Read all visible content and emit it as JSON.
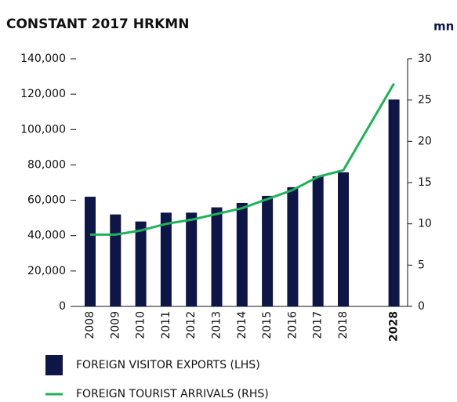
{
  "chart_data": {
    "type": "bar_line",
    "title": "CONSTANT 2017 HRKMN",
    "y2_unit": "mn",
    "categories": [
      "2008",
      "2009",
      "2010",
      "2011",
      "2012",
      "2013",
      "2014",
      "2015",
      "2016",
      "2017",
      "2018",
      "2028"
    ],
    "series": [
      {
        "name": "FOREIGN VISITOR EXPORTS (LHS)",
        "type": "bar",
        "color": "#0e1547",
        "values": [
          62000,
          52000,
          48000,
          53000,
          53000,
          56000,
          58500,
          62500,
          67400,
          73600,
          75800,
          117000
        ]
      },
      {
        "name": "FOREIGN TOURIST ARRIVALS (RHS)",
        "type": "line",
        "axis": "y2",
        "color": "#1fb25a",
        "values": [
          8.7,
          8.7,
          9.2,
          10.0,
          10.5,
          11.2,
          11.9,
          13.0,
          14.1,
          15.7,
          16.5,
          27.0
        ]
      }
    ],
    "ylim": [
      0,
      140000
    ],
    "yticks": [
      0,
      {
        "value": 20000,
        "label": "20,000"
      },
      {
        "value": 40000,
        "label": "40,000"
      },
      {
        "value": 60000,
        "label": "60,000"
      },
      {
        "value": 80000,
        "label": "80,000"
      },
      {
        "value": 100000,
        "label": "100,000"
      },
      {
        "value": 120000,
        "label": "120,000"
      },
      {
        "value": 140000,
        "label": "140,000"
      }
    ],
    "y2lim": [
      0,
      30
    ],
    "y2ticks": [
      0,
      5,
      10,
      15,
      20,
      25,
      30
    ]
  }
}
